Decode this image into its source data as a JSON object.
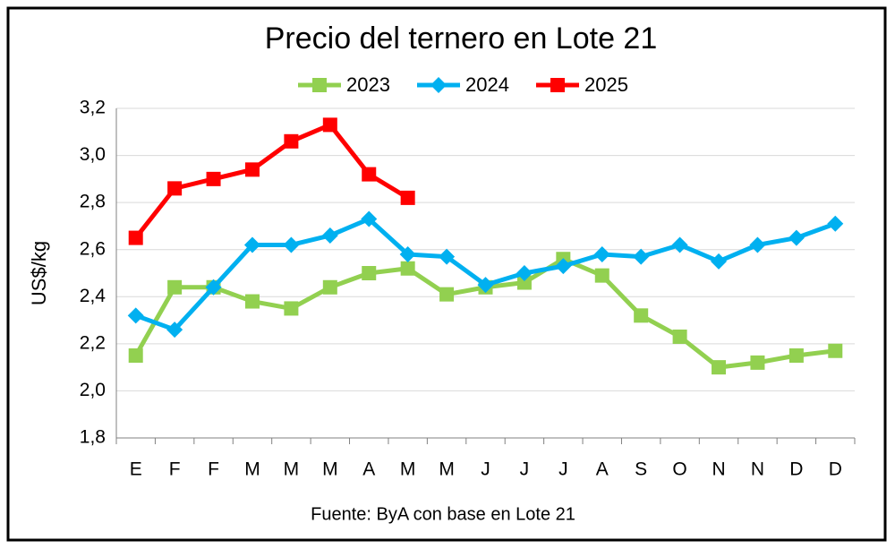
{
  "chart_data": {
    "type": "line",
    "title": "Precio del ternero en Lote 21",
    "y_label": "US$/kg",
    "annotation": "Fuente: ByA con base en Lote 21",
    "categories": [
      "E",
      "F",
      "F",
      "M",
      "M",
      "M",
      "A",
      "M",
      "M",
      "J",
      "J",
      "J",
      "A",
      "S",
      "O",
      "N",
      "N",
      "D",
      "D"
    ],
    "series": [
      {
        "name": "2023",
        "color": "#92d050",
        "marker": "square",
        "values": [
          2.15,
          2.44,
          2.44,
          2.38,
          2.35,
          2.44,
          2.5,
          2.52,
          2.41,
          2.44,
          2.46,
          2.56,
          2.49,
          2.32,
          2.23,
          2.1,
          2.12,
          2.15,
          2.17
        ]
      },
      {
        "name": "2024",
        "color": "#00b0f0",
        "marker": "diamond",
        "values": [
          2.32,
          2.26,
          2.44,
          2.62,
          2.62,
          2.66,
          2.73,
          2.58,
          2.57,
          2.45,
          2.5,
          2.53,
          2.58,
          2.57,
          2.62,
          2.55,
          2.62,
          2.65,
          2.71
        ]
      },
      {
        "name": "2025",
        "color": "#ff0000",
        "marker": "square",
        "values": [
          2.65,
          2.86,
          2.9,
          2.94,
          3.06,
          3.13,
          2.92,
          2.82,
          null,
          null,
          null,
          null,
          null,
          null,
          null,
          null,
          null,
          null,
          null
        ]
      }
    ],
    "ylim": [
      1.8,
      3.2
    ],
    "yticks": [
      {
        "value": 1.8,
        "label": "1,8"
      },
      {
        "value": 2.0,
        "label": "2,0"
      },
      {
        "value": 2.2,
        "label": "2,2"
      },
      {
        "value": 2.4,
        "label": "2,4"
      },
      {
        "value": 2.6,
        "label": "2,6"
      },
      {
        "value": 2.8,
        "label": "2,8"
      },
      {
        "value": 3.0,
        "label": "3,0"
      },
      {
        "value": 3.2,
        "label": "3,2"
      }
    ],
    "grid": true,
    "legend": "top"
  }
}
